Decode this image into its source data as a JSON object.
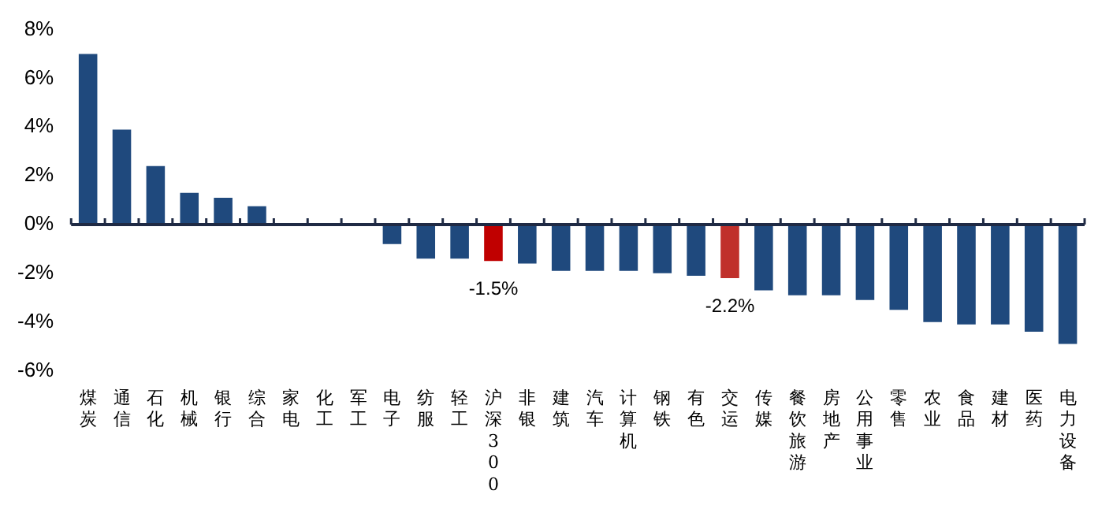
{
  "chart_data": {
    "type": "bar",
    "categories": [
      "煤炭",
      "通信",
      "石化",
      "机械",
      "银行",
      "综合",
      "家电",
      "化工",
      "军工",
      "电子",
      "纺服",
      "轻工",
      "沪深300",
      "非银",
      "建筑",
      "汽车",
      "计算机",
      "钢铁",
      "有色",
      "交运",
      "传媒",
      "餐饮旅游",
      "房地产",
      "公用事业",
      "零售",
      "农业",
      "食品",
      "建材",
      "医药",
      "电力设备"
    ],
    "values": [
      7.0,
      3.9,
      2.4,
      1.3,
      1.1,
      0.75,
      0,
      0,
      0,
      -0.8,
      -1.4,
      -1.4,
      -1.5,
      -1.6,
      -1.9,
      -1.9,
      -1.9,
      -2.0,
      -2.1,
      -2.2,
      -2.7,
      -2.9,
      -2.9,
      -3.1,
      -3.5,
      -4.0,
      -4.1,
      -4.1,
      -4.4,
      -4.9
    ],
    "colors": [
      "#1f497d",
      "#1f497d",
      "#1f497d",
      "#1f497d",
      "#1f497d",
      "#1f497d",
      "#1f497d",
      "#1f497d",
      "#1f497d",
      "#1f497d",
      "#1f497d",
      "#1f497d",
      "#c00000",
      "#1f497d",
      "#1f497d",
      "#1f497d",
      "#1f497d",
      "#1f497d",
      "#1f497d",
      "#c0302b",
      "#1f497d",
      "#1f497d",
      "#1f497d",
      "#1f497d",
      "#1f497d",
      "#1f497d",
      "#1f497d",
      "#1f497d",
      "#1f497d",
      "#1f497d"
    ],
    "value_labels": [
      null,
      null,
      null,
      null,
      null,
      null,
      null,
      null,
      null,
      null,
      null,
      null,
      "-1.5%",
      null,
      null,
      null,
      null,
      null,
      null,
      "-2.2%",
      null,
      null,
      null,
      null,
      null,
      null,
      null,
      null,
      null,
      null
    ],
    "ylim": [
      -6,
      8
    ],
    "yticks": [
      {
        "value": -6,
        "label": "-6%"
      },
      {
        "value": -4,
        "label": "-4%"
      },
      {
        "value": -2,
        "label": "-2%"
      },
      {
        "value": 0,
        "label": "0%"
      },
      {
        "value": 2,
        "label": "2%"
      },
      {
        "value": 4,
        "label": "4%"
      },
      {
        "value": 6,
        "label": "6%"
      },
      {
        "value": 8,
        "label": "8%"
      }
    ],
    "legend": false
  }
}
